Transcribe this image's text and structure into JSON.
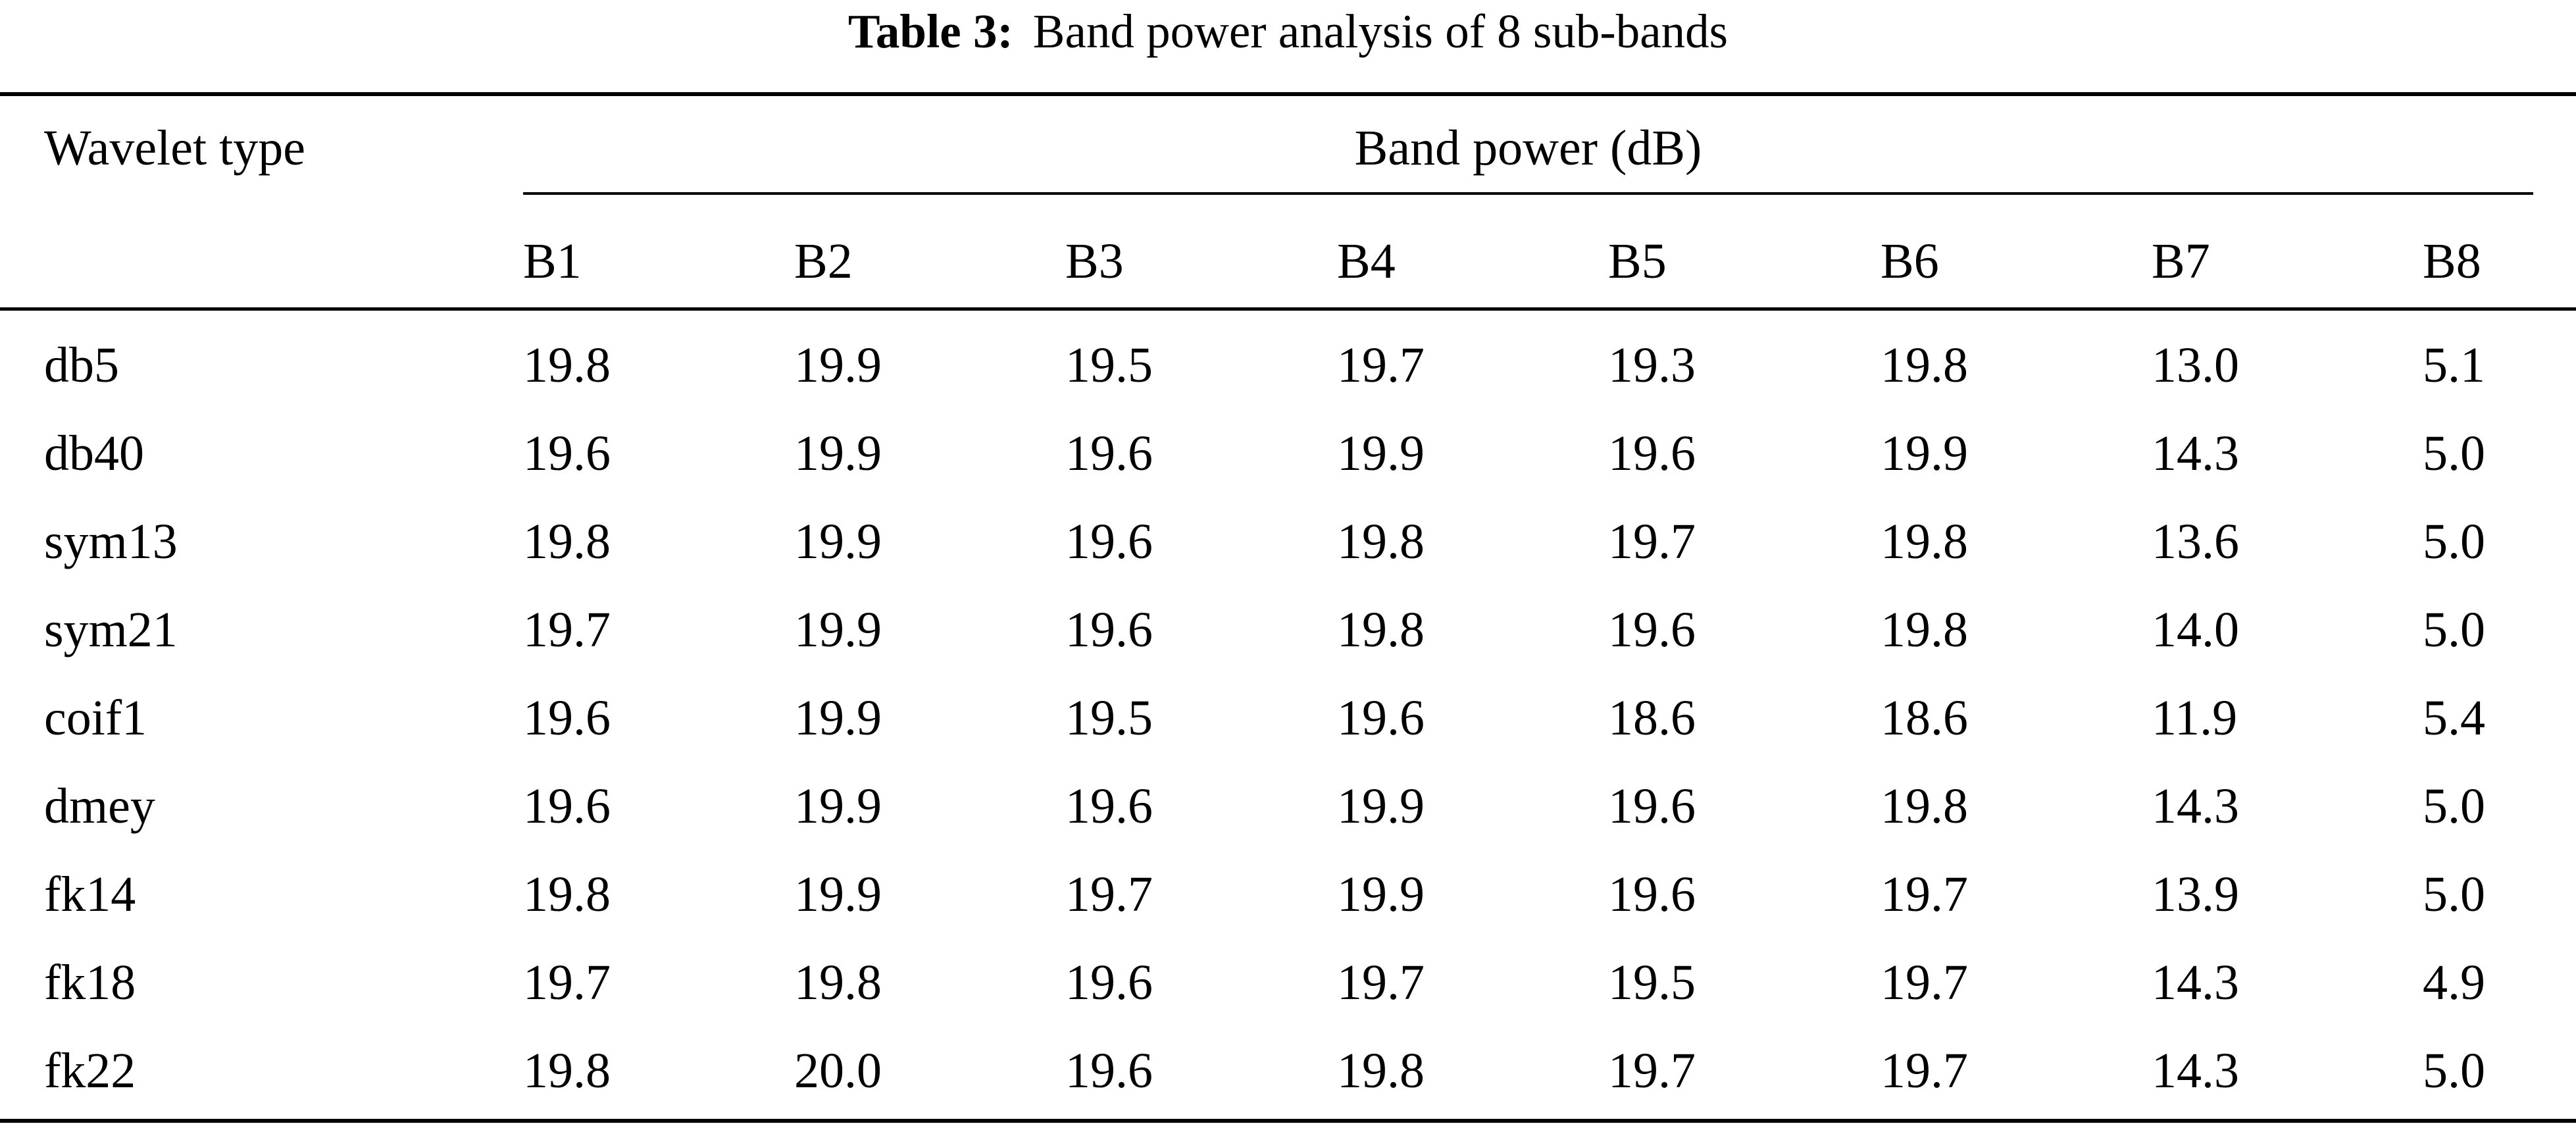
{
  "caption": {
    "label": "Table 3:",
    "text": "Band power analysis of 8 sub-bands"
  },
  "table": {
    "stub_header": "Wavelet type",
    "group_header": "Band power (dB)",
    "band_headers": [
      "B1",
      "B2",
      "B3",
      "B4",
      "B5",
      "B6",
      "B7",
      "B8"
    ],
    "rows": [
      {
        "wavelet": "db5",
        "values": [
          "19.8",
          "19.9",
          "19.5",
          "19.7",
          "19.3",
          "19.8",
          "13.0",
          "5.1"
        ]
      },
      {
        "wavelet": "db40",
        "values": [
          "19.6",
          "19.9",
          "19.6",
          "19.9",
          "19.6",
          "19.9",
          "14.3",
          "5.0"
        ]
      },
      {
        "wavelet": "sym13",
        "values": [
          "19.8",
          "19.9",
          "19.6",
          "19.8",
          "19.7",
          "19.8",
          "13.6",
          "5.0"
        ]
      },
      {
        "wavelet": "sym21",
        "values": [
          "19.7",
          "19.9",
          "19.6",
          "19.8",
          "19.6",
          "19.8",
          "14.0",
          "5.0"
        ]
      },
      {
        "wavelet": "coif1",
        "values": [
          "19.6",
          "19.9",
          "19.5",
          "19.6",
          "18.6",
          "18.6",
          "11.9",
          "5.4"
        ]
      },
      {
        "wavelet": "dmey",
        "values": [
          "19.6",
          "19.9",
          "19.6",
          "19.9",
          "19.6",
          "19.8",
          "14.3",
          "5.0"
        ]
      },
      {
        "wavelet": "fk14",
        "values": [
          "19.8",
          "19.9",
          "19.7",
          "19.9",
          "19.6",
          "19.7",
          "13.9",
          "5.0"
        ]
      },
      {
        "wavelet": "fk18",
        "values": [
          "19.7",
          "19.8",
          "19.6",
          "19.7",
          "19.5",
          "19.7",
          "14.3",
          "4.9"
        ]
      },
      {
        "wavelet": "fk22",
        "values": [
          "19.8",
          "20.0",
          "19.6",
          "19.8",
          "19.7",
          "19.7",
          "14.3",
          "5.0"
        ]
      }
    ]
  }
}
